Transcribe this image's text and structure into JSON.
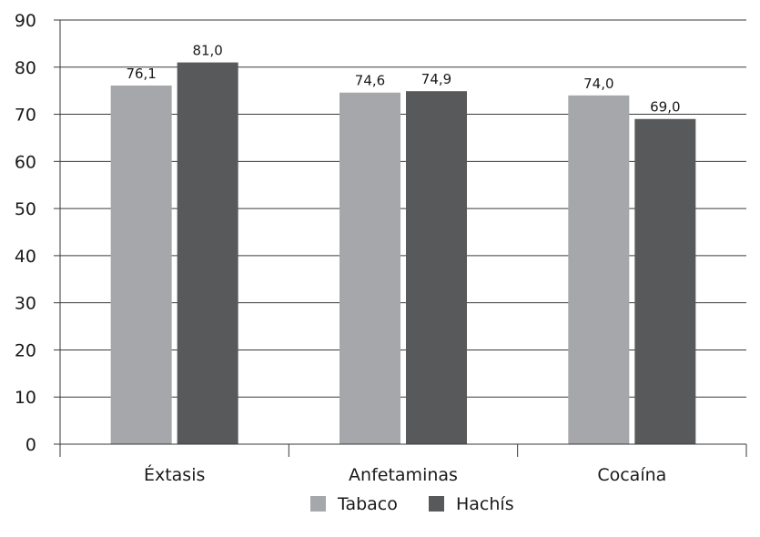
{
  "chart_data": {
    "type": "bar",
    "categories": [
      "Éxtasis",
      "Anfetaminas",
      "Cocaína"
    ],
    "series": [
      {
        "name": "Tabaco",
        "color": "#a6a7aa",
        "values": [
          76.1,
          74.6,
          74.0
        ],
        "labels": [
          "76,1",
          "74,6",
          "74,0"
        ]
      },
      {
        "name": "Hachís",
        "color": "#58595b",
        "values": [
          81.0,
          74.9,
          69.0
        ],
        "labels": [
          "81,0",
          "74,9",
          "69,0"
        ]
      }
    ],
    "ylim": [
      0,
      90
    ],
    "yticks": [
      0,
      10,
      20,
      30,
      40,
      50,
      60,
      70,
      80,
      90
    ],
    "grid": true,
    "legend_position": "bottom-center"
  }
}
